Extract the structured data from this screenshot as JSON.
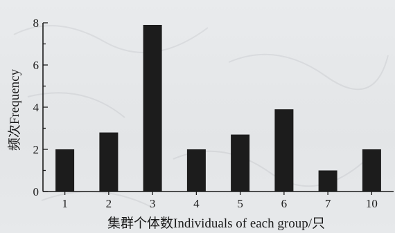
{
  "chart_data": {
    "type": "bar",
    "categories": [
      "1",
      "2",
      "3",
      "4",
      "5",
      "6",
      "7",
      "10"
    ],
    "values": [
      2,
      2.8,
      7.9,
      2,
      2.7,
      3.9,
      1,
      2
    ],
    "ylim": [
      0,
      8
    ],
    "yticks": [
      "0",
      "2",
      "4",
      "6",
      "8"
    ],
    "xlabel": "集群个体数Individuals of each group/只",
    "ylabel": "频次Frequency",
    "bar_color": "#1c1c1c",
    "axis_color": "#1b1b1b"
  }
}
